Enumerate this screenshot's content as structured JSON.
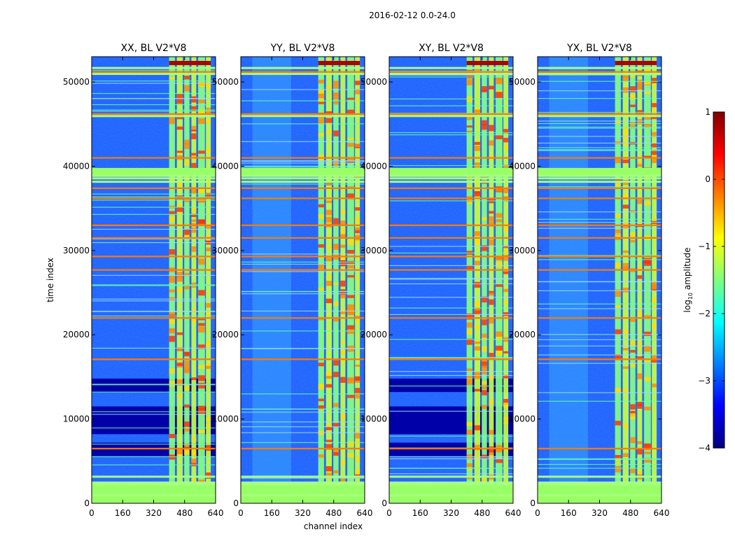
{
  "figure": {
    "suptitle": "2016-02-12 0.0-24.0"
  },
  "chart_data": {
    "type": "heatmap",
    "suptitle": "2016-02-12 0.0-24.0",
    "xlabel": "channel index",
    "ylabel": "time index",
    "xlim": [
      0,
      640
    ],
    "ylim": [
      0,
      53000
    ],
    "xticks": [
      0,
      160,
      320,
      480,
      640
    ],
    "yticks": [
      0,
      10000,
      20000,
      30000,
      40000,
      50000
    ],
    "panels": [
      {
        "title": "XX, BL V2*V8",
        "pol": "XX"
      },
      {
        "title": "YY, BL V2*V8",
        "pol": "YY"
      },
      {
        "title": "XY, BL V2*V8",
        "pol": "XY"
      },
      {
        "title": "YX, BL V2*V8",
        "pol": "YX"
      }
    ],
    "colorbar": {
      "label_prefix": "log",
      "label_sub": "10",
      "label_suffix": " amplitude",
      "min": -4,
      "max": 1,
      "ticks": [
        "−4",
        "−3",
        "−2",
        "−1",
        "0",
        "1"
      ],
      "colormap": "jet",
      "stops": [
        "#00007f",
        "#0000ff",
        "#007fff",
        "#00ffff",
        "#7fff7f",
        "#ffff00",
        "#ff7f00",
        "#ff0000",
        "#7f0000"
      ]
    },
    "hot_channel_bands": [
      [
        400,
        430
      ],
      [
        440,
        470
      ],
      [
        478,
        505
      ],
      [
        515,
        540
      ],
      [
        550,
        585
      ],
      [
        590,
        615
      ]
    ],
    "flag_rows_all": [
      1000,
      2300,
      2500,
      3200,
      38200,
      38600,
      38900,
      51000,
      51700,
      46000
    ],
    "green_flag_blocks": [
      [
        0,
        2400
      ],
      [
        38800,
        39800
      ]
    ],
    "quiet_bands_xx_xy": [
      [
        5600,
        7200
      ],
      [
        8200,
        11500
      ],
      [
        13200,
        14800
      ]
    ],
    "red_flag_rows": [
      6500,
      17100,
      22000,
      27700,
      29300,
      31500,
      33000,
      36200,
      37400,
      41000,
      46200,
      51200
    ]
  }
}
